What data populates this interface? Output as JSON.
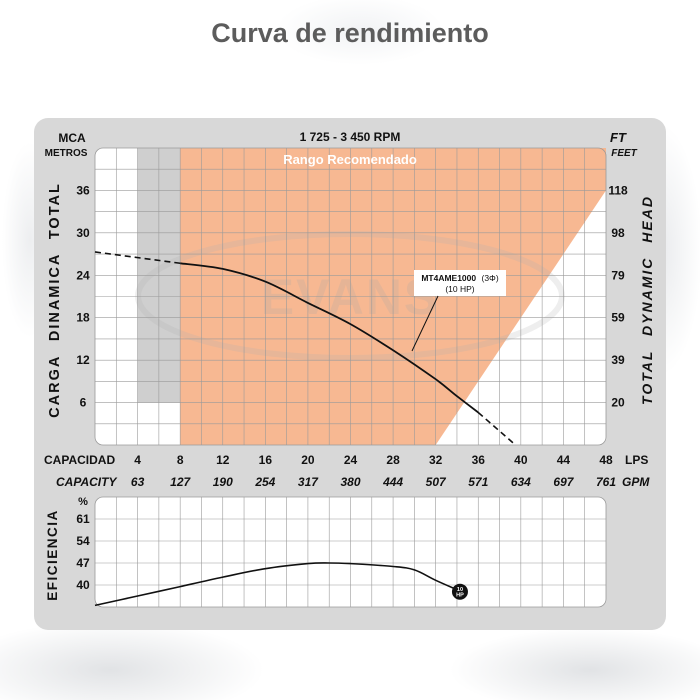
{
  "title": "Curva de rendimiento",
  "chart_data": [
    {
      "type": "line",
      "title": "1 725 - 3 450 RPM",
      "y_left_unit": "MCA",
      "y_left_unit_sub": "METROS",
      "y_right_unit": "FT",
      "y_right_unit_sub": "FEET",
      "ylabel_left": "CARGA DINAMICA TOTAL",
      "ylabel_right": "TOTAL DYNAMIC HEAD",
      "x_label_lps": "CAPACIDAD",
      "x_unit_lps": "LPS",
      "x_label_gpm": "CAPACITY",
      "x_unit_gpm": "GPM",
      "x_ticks_lps": [
        "4",
        "8",
        "12",
        "16",
        "20",
        "24",
        "28",
        "32",
        "36",
        "40",
        "44",
        "48"
      ],
      "x_ticks_gpm": [
        "63",
        "127",
        "190",
        "254",
        "317",
        "380",
        "444",
        "507",
        "571",
        "634",
        "697",
        "761"
      ],
      "y_ticks_mca": [
        "36",
        "30",
        "24",
        "18",
        "12",
        "6"
      ],
      "y_ticks_ft": [
        "118",
        "98",
        "79",
        "59",
        "39",
        "20"
      ],
      "xlim": [
        0,
        48
      ],
      "ylim": [
        0,
        42
      ],
      "recommended_range_label": "Rango Recomendado",
      "recommended_range": {
        "x_start": 8,
        "x_end": 48
      },
      "grey_region": {
        "x_start": 4,
        "x_end": 8,
        "y_min": 6,
        "y_max": 42
      },
      "watermark": "EVANS",
      "series": [
        {
          "name": "MT4AME1000",
          "points": [
            [
              8,
              25.7
            ],
            [
              12,
              24.9
            ],
            [
              16,
              23.1
            ],
            [
              20,
              20.1
            ],
            [
              24,
              17.1
            ],
            [
              28,
              13.4
            ],
            [
              32,
              9.3
            ],
            [
              34,
              6.9
            ],
            [
              36,
              4.6
            ]
          ],
          "dashed_before": [
            [
              0,
              27.3
            ],
            [
              8,
              25.7
            ]
          ],
          "dashed_after": [
            [
              36,
              4.6
            ],
            [
              39.5,
              0
            ]
          ]
        }
      ],
      "curve_label_model": "MT4AME1000",
      "curve_label_phase": "(3Φ)",
      "curve_label_hp": "(10 HP)"
    },
    {
      "type": "line",
      "ylabel": "EFICIENCIA",
      "y_unit": "%",
      "y_ticks": [
        "61",
        "54",
        "47",
        "40"
      ],
      "ylim": [
        33,
        68
      ],
      "xlim": [
        0,
        48
      ],
      "series": [
        {
          "name": "10 HP",
          "points": [
            [
              0,
              33.5
            ],
            [
              4,
              36.5
            ],
            [
              8,
              39.5
            ],
            [
              12,
              42.5
            ],
            [
              16,
              45.2
            ],
            [
              20,
              46.8
            ],
            [
              22,
              47.0
            ],
            [
              24,
              46.8
            ],
            [
              28,
              45.9
            ],
            [
              30,
              44.8
            ],
            [
              32,
              41.5
            ],
            [
              34,
              38.5
            ]
          ]
        }
      ],
      "end_marker_top": "10",
      "end_marker_bottom": "HP"
    }
  ]
}
